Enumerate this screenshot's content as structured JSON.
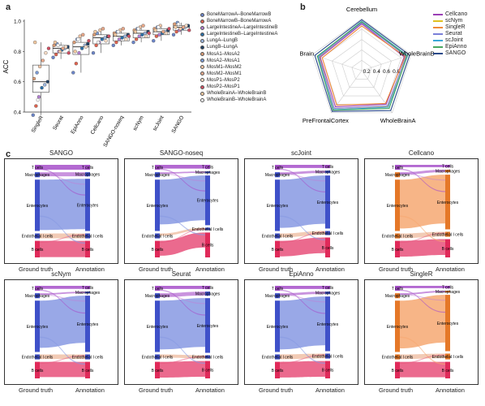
{
  "panels": {
    "a": "a",
    "b": "b",
    "c": "c"
  },
  "colors": {
    "ground_bar": "#3f51c9",
    "ground_bar_alt": "#e57828",
    "tcell": "#a64fc9",
    "macro": "#c080d8",
    "entero": "#8799e3",
    "entero_alt": "#f6a872",
    "endo": "#f0c2a8",
    "bcell": "#e8507a",
    "bcell_bar": "#e02a5a"
  },
  "legend_a": [
    {
      "label": "BoneMarrowA–BoneMarrowB",
      "color": "#6b85c9"
    },
    {
      "label": "BoneMarrowB–BoneMarrowA",
      "color": "#e0634f"
    },
    {
      "label": "LargeIntestineA–LargeIntestineB",
      "color": "#b27fd1"
    },
    {
      "label": "LargeIntestineB–LargeIntestineA",
      "color": "#2a6fa8"
    },
    {
      "label": "LungA–LungB",
      "color": "#9bb6de"
    },
    {
      "label": "LungB–LungA",
      "color": "#1f3f63"
    },
    {
      "label": "MosA1–MosA2",
      "color": "#d89a74"
    },
    {
      "label": "MosA2–MosA1",
      "color": "#7a9ad4"
    },
    {
      "label": "MosM1–MosM2",
      "color": "#f0c5a5"
    },
    {
      "label": "MosM2–MosM1",
      "color": "#e8a88a"
    },
    {
      "label": "MosP1–MosP2",
      "color": "#f6dcc6"
    },
    {
      "label": "MosP2–MosP1",
      "color": "#d04f62"
    },
    {
      "label": "WholeBrainA–WholeBrainB",
      "color": "#f3c9a0"
    },
    {
      "label": "WholeBrainB–WholeBrainA",
      "color": "#ffffff"
    }
  ],
  "chart_data": [
    {
      "type": "box",
      "ylabel": "ACC",
      "ylim": [
        0.4,
        1.0
      ],
      "yticks": [
        "0.4",
        "0.6",
        "0.8",
        "1.0"
      ],
      "categories": [
        "SingleR",
        "Seurat",
        "EpiAnno",
        "Cellcano",
        "SANGO-noseq",
        "scNym",
        "scJoint",
        "SANGO"
      ],
      "boxes": [
        {
          "min": 0.38,
          "q1": 0.53,
          "median": 0.6,
          "q3": 0.71,
          "max": 0.86
        },
        {
          "min": 0.75,
          "q1": 0.79,
          "median": 0.82,
          "q3": 0.84,
          "max": 0.86
        },
        {
          "min": 0.66,
          "q1": 0.78,
          "median": 0.83,
          "q3": 0.86,
          "max": 0.91
        },
        {
          "min": 0.79,
          "q1": 0.85,
          "median": 0.89,
          "q3": 0.91,
          "max": 0.95
        },
        {
          "min": 0.84,
          "q1": 0.87,
          "median": 0.9,
          "q3": 0.92,
          "max": 0.95
        },
        {
          "min": 0.86,
          "q1": 0.89,
          "median": 0.92,
          "q3": 0.94,
          "max": 0.97
        },
        {
          "min": 0.87,
          "q1": 0.91,
          "median": 0.93,
          "q3": 0.95,
          "max": 0.97
        },
        {
          "min": 0.91,
          "q1": 0.94,
          "median": 0.96,
          "q3": 0.97,
          "max": 0.99
        }
      ],
      "points": [
        [
          0.38,
          0.44,
          0.5,
          0.56,
          0.58,
          0.6,
          0.62,
          0.66,
          0.7,
          0.74,
          0.79,
          0.82,
          0.86,
          0.48
        ],
        [
          0.76,
          0.78,
          0.8,
          0.81,
          0.82,
          0.83,
          0.84,
          0.85,
          0.8,
          0.82,
          0.83,
          0.79,
          0.86,
          0.84
        ],
        [
          0.66,
          0.72,
          0.79,
          0.82,
          0.84,
          0.85,
          0.86,
          0.88,
          0.9,
          0.91,
          0.83,
          0.87,
          0.8,
          0.88
        ],
        [
          0.79,
          0.84,
          0.86,
          0.88,
          0.89,
          0.9,
          0.91,
          0.92,
          0.94,
          0.95,
          0.87,
          0.9,
          0.93,
          0.86
        ],
        [
          0.84,
          0.86,
          0.88,
          0.89,
          0.9,
          0.91,
          0.92,
          0.93,
          0.94,
          0.95,
          0.88,
          0.9,
          0.91,
          0.93
        ],
        [
          0.86,
          0.88,
          0.9,
          0.91,
          0.92,
          0.93,
          0.94,
          0.95,
          0.96,
          0.97,
          0.9,
          0.92,
          0.93,
          0.95
        ],
        [
          0.87,
          0.9,
          0.91,
          0.92,
          0.93,
          0.94,
          0.95,
          0.96,
          0.97,
          0.93,
          0.92,
          0.95,
          0.94,
          0.96
        ],
        [
          0.91,
          0.93,
          0.94,
          0.95,
          0.96,
          0.97,
          0.98,
          0.99,
          0.95,
          0.96,
          0.97,
          0.94,
          0.96,
          0.98
        ]
      ]
    },
    {
      "type": "radar",
      "axes": [
        "Cerebellum",
        "WholeBrainB",
        "WholeBrainA",
        "PreFrontalCortex",
        "Brain"
      ],
      "rticks": [
        "0.2",
        "0.4",
        "0.6",
        "0.8"
      ],
      "rlim": [
        0,
        1
      ],
      "series": [
        {
          "name": "Cellcano",
          "color": "#9b3fb5",
          "values": [
            0.9,
            0.86,
            0.8,
            0.86,
            0.84
          ]
        },
        {
          "name": "scNym",
          "color": "#e0c020",
          "values": [
            0.93,
            0.9,
            0.85,
            0.9,
            0.86
          ]
        },
        {
          "name": "SingleR",
          "color": "#f08a3a",
          "values": [
            0.86,
            0.88,
            0.78,
            0.82,
            0.8
          ]
        },
        {
          "name": "Seurat",
          "color": "#7a7fd8",
          "values": [
            0.92,
            0.9,
            0.84,
            0.9,
            0.87
          ]
        },
        {
          "name": "scJoint",
          "color": "#3aa8d8",
          "values": [
            0.95,
            0.93,
            0.87,
            0.93,
            0.89
          ]
        },
        {
          "name": "EpiAnno",
          "color": "#4aa860",
          "values": [
            0.94,
            0.92,
            0.9,
            0.94,
            0.9
          ]
        },
        {
          "name": "SANGO",
          "color": "#2a4a8a",
          "values": [
            0.98,
            0.97,
            0.95,
            0.97,
            0.95
          ]
        }
      ]
    },
    {
      "type": "sankey",
      "footer_left": "Ground truth",
      "footer_right": "Annotation",
      "cell_types": [
        "T cells",
        "Macrophages",
        "Enterocytes",
        "Endothelial l cells",
        "B cells"
      ],
      "methods": [
        {
          "title": "SANGO",
          "alt": false,
          "left": [
            0.06,
            0.06,
            0.62,
            0.06,
            0.2
          ],
          "right": [
            0.06,
            0.05,
            0.63,
            0.06,
            0.2
          ],
          "off": 0.02
        },
        {
          "title": "SANGO-noseq",
          "alt": false,
          "left": [
            0.06,
            0.06,
            0.62,
            0.06,
            0.2
          ],
          "right": [
            0.05,
            0.02,
            0.6,
            0.03,
            0.3
          ],
          "off": 0.1
        },
        {
          "title": "scJoint",
          "alt": false,
          "left": [
            0.06,
            0.06,
            0.62,
            0.06,
            0.2
          ],
          "right": [
            0.04,
            0.03,
            0.64,
            0.05,
            0.24
          ],
          "off": 0.06
        },
        {
          "title": "Cellcano",
          "alt": true,
          "left": [
            0.06,
            0.06,
            0.62,
            0.06,
            0.2
          ],
          "right": [
            0.03,
            0.03,
            0.66,
            0.06,
            0.22
          ],
          "off": 0.05
        },
        {
          "title": "scNym",
          "alt": false,
          "left": [
            0.06,
            0.06,
            0.62,
            0.06,
            0.2
          ],
          "right": [
            0.04,
            0.02,
            0.68,
            0.06,
            0.2
          ],
          "off": 0.08
        },
        {
          "title": "Seurat",
          "alt": false,
          "left": [
            0.06,
            0.06,
            0.62,
            0.06,
            0.2
          ],
          "right": [
            0.04,
            0.05,
            0.66,
            0.04,
            0.21
          ],
          "off": 0.05
        },
        {
          "title": "EpiAnno",
          "alt": false,
          "left": [
            0.06,
            0.06,
            0.62,
            0.06,
            0.2
          ],
          "right": [
            0.04,
            0.03,
            0.66,
            0.06,
            0.21
          ],
          "off": 0.05
        },
        {
          "title": "SingleR",
          "alt": true,
          "left": [
            0.06,
            0.06,
            0.62,
            0.06,
            0.2
          ],
          "right": [
            0.03,
            0.02,
            0.68,
            0.07,
            0.2
          ],
          "off": 0.07
        }
      ]
    }
  ]
}
